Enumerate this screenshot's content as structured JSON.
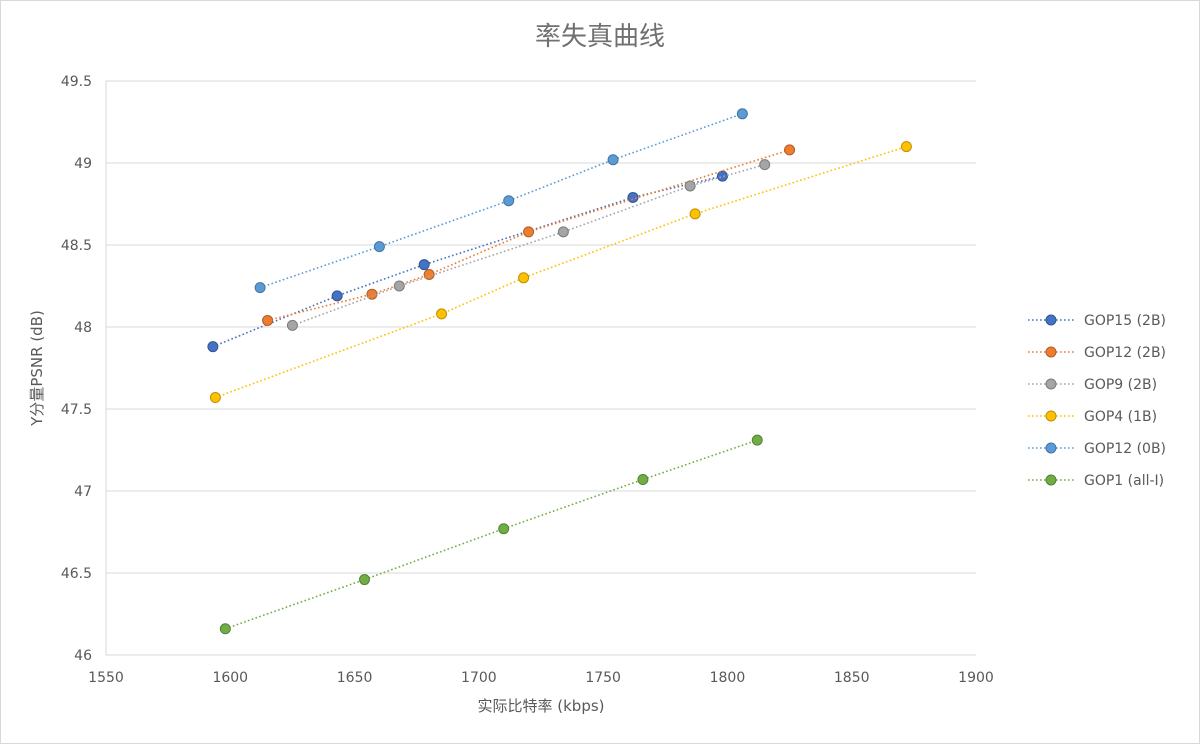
{
  "chart_data": {
    "type": "scatter",
    "title": "率失真曲线",
    "xlabel": "实际比特率 (kbps)",
    "ylabel": "Y分量PSNR (dB)",
    "xlim": [
      1550,
      1900
    ],
    "ylim": [
      46,
      49.5
    ],
    "x_ticks": [
      "1550",
      "1600",
      "1650",
      "1700",
      "1750",
      "1800",
      "1850",
      "1900"
    ],
    "y_ticks": [
      "46",
      "46.5",
      "47",
      "47.5",
      "48",
      "48.5",
      "49",
      "49.5"
    ],
    "grid": "horizontal",
    "legend_position": "right",
    "series": [
      {
        "name": "GOP15 (2B)",
        "color": "#4472c4",
        "points": [
          [
            1593,
            47.88
          ],
          [
            1643,
            48.19
          ],
          [
            1678,
            48.38
          ],
          [
            1762,
            48.79
          ],
          [
            1798,
            48.92
          ]
        ]
      },
      {
        "name": "GOP12 (2B)",
        "color": "#ed7d31",
        "points": [
          [
            1615,
            48.04
          ],
          [
            1657,
            48.2
          ],
          [
            1680,
            48.32
          ],
          [
            1720,
            48.58
          ],
          [
            1825,
            49.08
          ]
        ]
      },
      {
        "name": "GOP9 (2B)",
        "color": "#a5a5a5",
        "points": [
          [
            1625,
            48.01
          ],
          [
            1668,
            48.25
          ],
          [
            1734,
            48.58
          ],
          [
            1785,
            48.86
          ],
          [
            1815,
            48.99
          ]
        ]
      },
      {
        "name": "GOP4 (1B)",
        "color": "#ffc000",
        "points": [
          [
            1594,
            47.57
          ],
          [
            1685,
            48.08
          ],
          [
            1718,
            48.3
          ],
          [
            1787,
            48.69
          ],
          [
            1872,
            49.1
          ]
        ]
      },
      {
        "name": "GOP12 (0B)",
        "color": "#5b9bd5",
        "points": [
          [
            1612,
            48.24
          ],
          [
            1660,
            48.49
          ],
          [
            1712,
            48.77
          ],
          [
            1754,
            49.02
          ],
          [
            1806,
            49.3
          ]
        ]
      },
      {
        "name": "GOP1 (all-I)",
        "color": "#70ad47",
        "points": [
          [
            1598,
            46.16
          ],
          [
            1654,
            46.46
          ],
          [
            1710,
            46.77
          ],
          [
            1766,
            47.07
          ],
          [
            1812,
            47.31
          ]
        ]
      }
    ]
  }
}
